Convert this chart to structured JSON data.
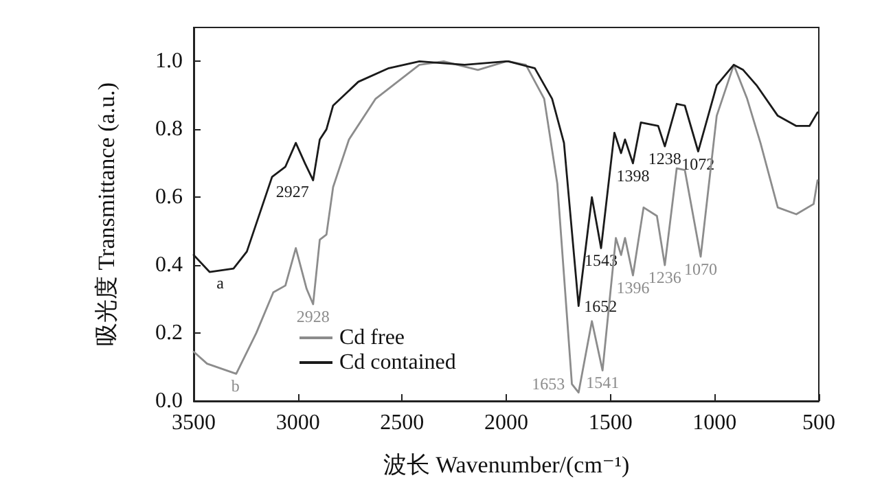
{
  "chart_data": {
    "type": "line",
    "xlabel": "波长 Wavenumber/(cm⁻¹)",
    "ylabel": "吸光度 Transmittance (a.u.)",
    "xlim": [
      3500,
      500
    ],
    "xticks": [
      3500,
      3000,
      2500,
      2000,
      1500,
      1000,
      500
    ],
    "ylim": [
      0,
      1.1
    ],
    "yticks": [
      {
        "value": 0,
        "label": "0.0"
      },
      {
        "value": 0.2,
        "label": "0.2"
      },
      {
        "value": 0.4,
        "label": "0.4"
      },
      {
        "value": 0.6,
        "label": "0.6"
      },
      {
        "value": 0.8,
        "label": "0.8"
      },
      {
        "value": 1,
        "label": "1.0"
      }
    ],
    "grid": false,
    "legend": "bottom left",
    "marker": "none",
    "line_style": "solid",
    "series": [
      {
        "name": "Cd free",
        "color": "#8c8c8c",
        "x": [
          3500,
          3436,
          3296,
          3200,
          3118,
          3060,
          3010,
          2958,
          2927,
          2895,
          2863,
          2831,
          2755,
          2627,
          2417,
          2300,
          2136,
          2000,
          1990,
          1906,
          1818,
          1755,
          1685,
          1653,
          1589,
          1538,
          1474,
          1449,
          1430,
          1392,
          1341,
          1277,
          1239,
          1182,
          1143,
          1067,
          990,
          908,
          844,
          780,
          697,
          608,
          525,
          506
        ],
        "values": [
          0.145,
          0.11,
          0.08,
          0.2,
          0.32,
          0.34,
          0.45,
          0.33,
          0.285,
          0.475,
          0.49,
          0.63,
          0.77,
          0.89,
          0.99,
          1.0,
          0.975,
          1.0,
          1.0,
          0.99,
          0.89,
          0.64,
          0.05,
          0.025,
          0.235,
          0.09,
          0.48,
          0.43,
          0.48,
          0.37,
          0.57,
          0.545,
          0.4,
          0.685,
          0.68,
          0.425,
          0.84,
          0.99,
          0.89,
          0.76,
          0.57,
          0.55,
          0.58,
          0.65
        ]
      },
      {
        "name": "Cd contained",
        "color": "#1a1a1a",
        "x": [
          3500,
          3424,
          3309,
          3245,
          3124,
          3060,
          3010,
          2966,
          2927,
          2895,
          2863,
          2831,
          2710,
          2564,
          2417,
          2200,
          2000,
          1990,
          1863,
          1780,
          1723,
          1653,
          1589,
          1545,
          1481,
          1449,
          1430,
          1392,
          1354,
          1271,
          1239,
          1182,
          1143,
          1079,
          990,
          908,
          863,
          799,
          697,
          608,
          545,
          506
        ],
        "values": [
          0.43,
          0.38,
          0.39,
          0.44,
          0.66,
          0.69,
          0.76,
          0.7,
          0.65,
          0.77,
          0.8,
          0.87,
          0.94,
          0.98,
          1.0,
          0.99,
          1.0,
          1.0,
          0.98,
          0.89,
          0.76,
          0.28,
          0.6,
          0.45,
          0.79,
          0.73,
          0.77,
          0.7,
          0.82,
          0.81,
          0.75,
          0.875,
          0.87,
          0.735,
          0.93,
          0.99,
          0.975,
          0.93,
          0.84,
          0.81,
          0.81,
          0.85
        ]
      }
    ],
    "annotations": [
      {
        "text": "a",
        "x": 3373,
        "y": 0.385
      },
      {
        "text": "b",
        "x": 3300,
        "y": 0.08
      },
      {
        "text": "2927",
        "x": 2927,
        "y": 0.65
      },
      {
        "text": "2928",
        "x": 2927,
        "y": 0.285
      },
      {
        "text": "1652",
        "x": 1653,
        "y": 0.28
      },
      {
        "text": "1543",
        "x": 1545,
        "y": 0.45
      },
      {
        "text": "1398",
        "x": 1392,
        "y": 0.7
      },
      {
        "text": "1238",
        "x": 1239,
        "y": 0.75
      },
      {
        "text": "1072",
        "x": 1079,
        "y": 0.735
      },
      {
        "text": "1653",
        "x": 1653,
        "y": 0.025
      },
      {
        "text": "1541",
        "x": 1538,
        "y": 0.09
      },
      {
        "text": "1396",
        "x": 1392,
        "y": 0.37
      },
      {
        "text": "1236",
        "x": 1239,
        "y": 0.4
      },
      {
        "text": "1070",
        "x": 1067,
        "y": 0.425
      }
    ]
  }
}
